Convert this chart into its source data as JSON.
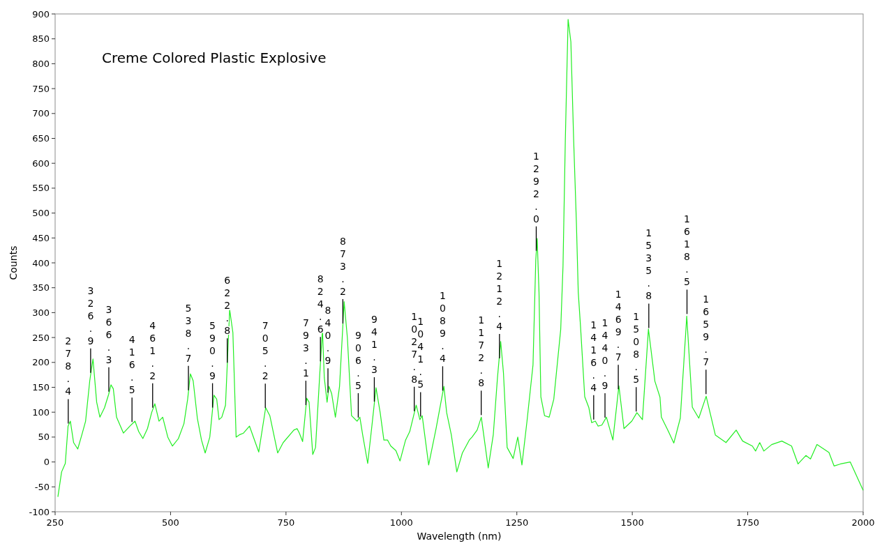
{
  "chart_data": {
    "type": "line",
    "title": "Creme Colored Plastic Explosive",
    "xlabel": "Wavelength (nm)",
    "ylabel": "Counts",
    "xlim": [
      250,
      2000
    ],
    "xticks": [
      250,
      500,
      750,
      1000,
      1250,
      1500,
      1750,
      2000
    ],
    "ylim": [
      -100,
      900
    ],
    "yticks": [
      -100,
      -50,
      0,
      50,
      100,
      150,
      200,
      250,
      300,
      350,
      400,
      450,
      500,
      550,
      600,
      650,
      700,
      750,
      800,
      850,
      900
    ],
    "grid": false,
    "marker": "none",
    "line_style": "solid",
    "series": [
      {
        "color": "#22ee22",
        "x": [
          256,
          264,
          272,
          278,
          283,
          290,
          299,
          308,
          316,
          325,
          332,
          340,
          347,
          357,
          366,
          371,
          376,
          383,
          398,
          412,
          423,
          431,
          440,
          450,
          459,
          466,
          475,
          483,
          494,
          504,
          517,
          529,
          537,
          543,
          549,
          558,
          567,
          575,
          585,
          594,
          600,
          605,
          611,
          619,
          628,
          635,
          642,
          650,
          658,
          671,
          691,
          706,
          715,
          732,
          744,
          767,
          774,
          779,
          786,
          795,
          800,
          808,
          814,
          823,
          829,
          833,
          839,
          843,
          849,
          857,
          866,
          876,
          883,
          892,
          904,
          910,
          916,
          927,
          936,
          945,
          954,
          962,
          970,
          977,
          988,
          997,
          1009,
          1018,
          1032,
          1040,
          1045,
          1059,
          1075,
          1092,
          1098,
          1108,
          1120,
          1132,
          1147,
          1153,
          1164,
          1173,
          1188,
          1199,
          1208,
          1215,
          1221,
          1229,
          1242,
          1252,
          1261,
          1272,
          1285,
          1291,
          1294,
          1298,
          1302,
          1310,
          1320,
          1330,
          1345,
          1350,
          1355,
          1361,
          1367,
          1373,
          1379,
          1383,
          1388,
          1397,
          1406,
          1412,
          1420,
          1426,
          1434,
          1444,
          1458,
          1471,
          1482,
          1499,
          1510,
          1522,
          1535,
          1549,
          1560,
          1563,
          1577,
          1590,
          1604,
          1618,
          1630,
          1644,
          1660,
          1680,
          1703,
          1725,
          1739,
          1760,
          1767,
          1776,
          1785,
          1802,
          1824,
          1845,
          1859,
          1876,
          1886,
          1900,
          1926,
          1937,
          1951,
          1972,
          2000
        ],
        "values": [
          -70,
          -20,
          -3,
          72,
          82,
          39,
          26,
          55,
          82,
          163,
          207,
          120,
          90,
          109,
          136,
          155,
          147,
          90,
          58,
          72,
          82,
          61,
          47,
          67,
          99,
          117,
          82,
          90,
          50,
          32,
          47,
          77,
          126,
          177,
          163,
          88,
          44,
          18,
          50,
          134,
          126,
          85,
          90,
          114,
          306,
          260,
          50,
          55,
          58,
          72,
          20,
          109,
          93,
          18,
          39,
          64,
          67,
          58,
          41,
          128,
          120,
          15,
          29,
          174,
          265,
          169,
          120,
          152,
          137,
          90,
          152,
          322,
          249,
          93,
          82,
          90,
          55,
          -3,
          72,
          149,
          99,
          44,
          44,
          32,
          23,
          2,
          44,
          61,
          114,
          85,
          93,
          -6,
          67,
          152,
          99,
          55,
          -20,
          18,
          44,
          50,
          64,
          90,
          -12,
          55,
          169,
          242,
          179,
          29,
          7,
          50,
          -6,
          82,
          195,
          406,
          449,
          341,
          131,
          93,
          90,
          126,
          266,
          394,
          648,
          889,
          844,
          648,
          480,
          341,
          271,
          131,
          109,
          79,
          82,
          72,
          74,
          90,
          44,
          153,
          67,
          82,
          99,
          85,
          267,
          162,
          130,
          90,
          64,
          38,
          88,
          293,
          110,
          88,
          132,
          54,
          39,
          64,
          42,
          32,
          22,
          39,
          22,
          35,
          42,
          32,
          -4,
          13,
          6,
          35,
          19,
          -8,
          -4,
          0,
          -57
        ]
      }
    ],
    "annotations": [
      {
        "text": "278.4",
        "x": 278.4,
        "y": 73
      },
      {
        "text": "326.9",
        "x": 326.9,
        "y": 175
      },
      {
        "text": "366.3",
        "x": 366.3,
        "y": 137
      },
      {
        "text": "416.5",
        "x": 416.5,
        "y": 76
      },
      {
        "text": "461.2",
        "x": 461.2,
        "y": 105
      },
      {
        "text": "538.7",
        "x": 538.7,
        "y": 140
      },
      {
        "text": "590.9",
        "x": 590.9,
        "y": 105
      },
      {
        "text": "622.8",
        "x": 622.8,
        "y": 195
      },
      {
        "text": "705.2",
        "x": 705.2,
        "y": 104
      },
      {
        "text": "793.1",
        "x": 793.1,
        "y": 110
      },
      {
        "text": "824.6",
        "x": 824.6,
        "y": 198
      },
      {
        "text": "840.9",
        "x": 840.9,
        "y": 135
      },
      {
        "text": "873.2",
        "x": 873.2,
        "y": 274
      },
      {
        "text": "906.5",
        "x": 906.5,
        "y": 85
      },
      {
        "text": "941.3",
        "x": 941.3,
        "y": 117
      },
      {
        "text": "1027.8",
        "x": 1027.8,
        "y": 98
      },
      {
        "text": "1041.5",
        "x": 1041.5,
        "y": 87
      },
      {
        "text": "1089.4",
        "x": 1089.4,
        "y": 139
      },
      {
        "text": "1172.8",
        "x": 1172.8,
        "y": 90
      },
      {
        "text": "1212.4",
        "x": 1212.4,
        "y": 204
      },
      {
        "text": "1292.0",
        "x": 1292.0,
        "y": 420
      },
      {
        "text": "1416.4",
        "x": 1416.4,
        "y": 81
      },
      {
        "text": "1440.9",
        "x": 1440.9,
        "y": 85
      },
      {
        "text": "1469.7",
        "x": 1469.7,
        "y": 142
      },
      {
        "text": "1508.5",
        "x": 1508.5,
        "y": 97
      },
      {
        "text": "1535.8",
        "x": 1535.8,
        "y": 265
      },
      {
        "text": "1618.5",
        "x": 1618.5,
        "y": 293
      },
      {
        "text": "1659.7",
        "x": 1659.7,
        "y": 132
      }
    ]
  }
}
